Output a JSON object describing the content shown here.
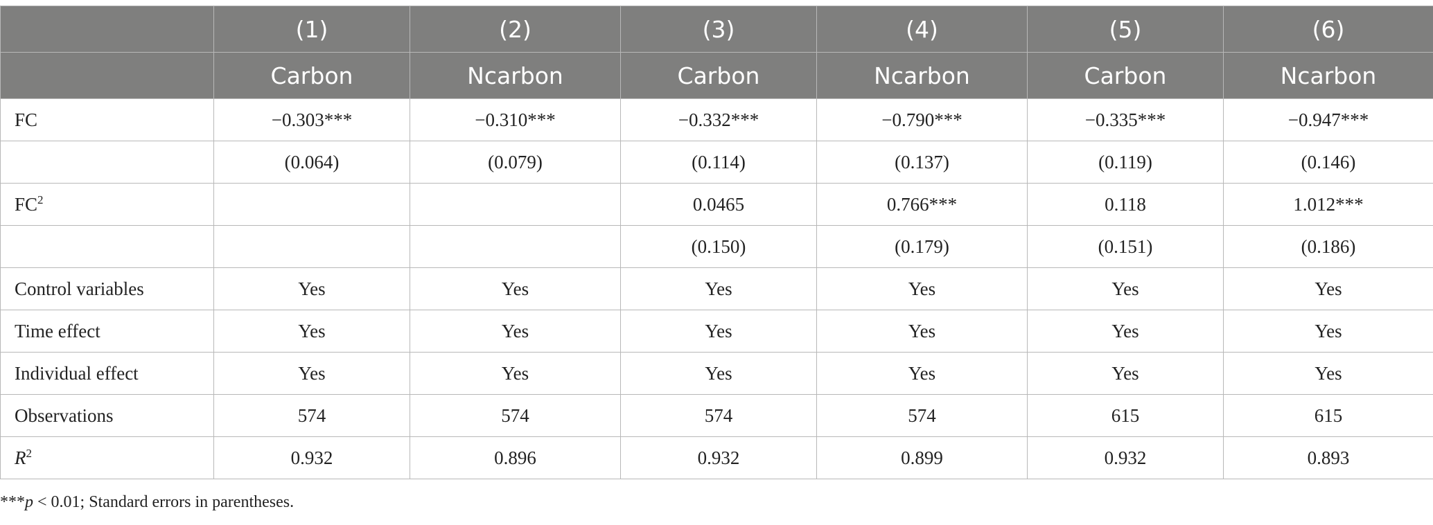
{
  "header": {
    "numbers": [
      "(1)",
      "(2)",
      "(3)",
      "(4)",
      "(5)",
      "(6)"
    ],
    "dependents": [
      "Carbon",
      "Ncarbon",
      "Carbon",
      "Ncarbon",
      "Carbon",
      "Ncarbon"
    ]
  },
  "rows": {
    "fc": {
      "label": "FC",
      "values": [
        "−0.303***",
        "−0.310***",
        "−0.332***",
        "−0.790***",
        "−0.335***",
        "−0.947***"
      ]
    },
    "fc_se": {
      "label": "",
      "values": [
        "(0.064)",
        "(0.079)",
        "(0.114)",
        "(0.137)",
        "(0.119)",
        "(0.146)"
      ]
    },
    "fc2": {
      "label_main": "FC",
      "label_sup": "2",
      "values": [
        "",
        "",
        "0.0465",
        "0.766***",
        "0.118",
        "1.012***"
      ]
    },
    "fc2_se": {
      "label": "",
      "values": [
        "",
        "",
        "(0.150)",
        "(0.179)",
        "(0.151)",
        "(0.186)"
      ]
    },
    "controls": {
      "label": "Control variables",
      "values": [
        "Yes",
        "Yes",
        "Yes",
        "Yes",
        "Yes",
        "Yes"
      ]
    },
    "time": {
      "label": "Time effect",
      "values": [
        "Yes",
        "Yes",
        "Yes",
        "Yes",
        "Yes",
        "Yes"
      ]
    },
    "individual": {
      "label": "Individual effect",
      "values": [
        "Yes",
        "Yes",
        "Yes",
        "Yes",
        "Yes",
        "Yes"
      ]
    },
    "observations": {
      "label": "Observations",
      "values": [
        "574",
        "574",
        "574",
        "574",
        "615",
        "615"
      ]
    },
    "r2": {
      "label_main": "R",
      "label_sup": "2",
      "values": [
        "0.932",
        "0.896",
        "0.932",
        "0.899",
        "0.932",
        "0.893"
      ]
    }
  },
  "footnote": {
    "stars": "***",
    "p": "p",
    "rest": " < 0.01; Standard errors in parentheses."
  },
  "colors": {
    "header_bg": "#7f7f7e",
    "header_text": "#ffffff",
    "grid": "#b8b8b8",
    "body_text": "#222222"
  }
}
